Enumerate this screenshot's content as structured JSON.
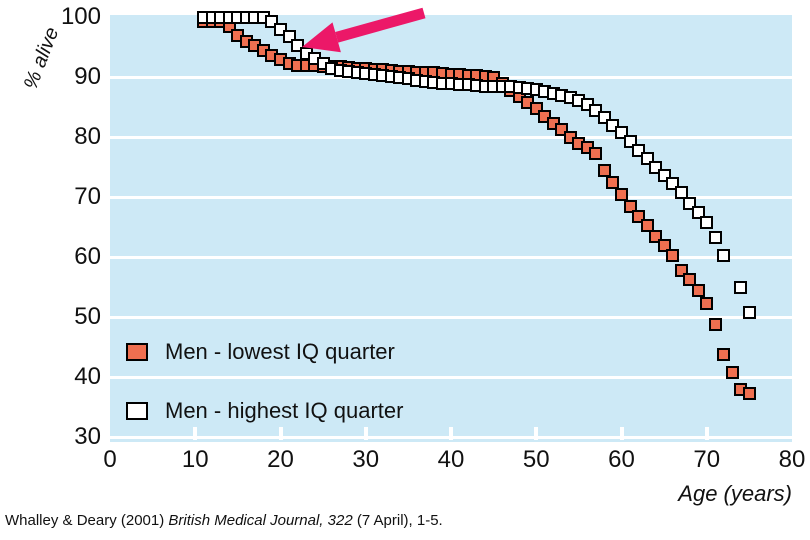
{
  "slide": {
    "citation": {
      "prefix": "Whalley & Deary (2001) ",
      "italic_part": "British Medical Journal, 322",
      "suffix": " (7 April), 1-5."
    }
  },
  "colors": {
    "plot_background": "#cde9f6",
    "gridline": "#ffffff",
    "lowest_iq_marker": "#ef6f50",
    "highest_iq_marker": "#ffffff",
    "marker_border": "#000000",
    "annotation_arrow": "#ec1868",
    "text": "#111111"
  },
  "chart_data": {
    "type": "scatter",
    "title": "",
    "xlabel": "Age (years)",
    "ylabel": "% alive",
    "xlim": [
      0,
      80
    ],
    "ylim": [
      30,
      100
    ],
    "x_ticks": [
      0,
      10,
      20,
      30,
      40,
      50,
      60,
      70,
      80
    ],
    "y_ticks": [
      100,
      90,
      80,
      70,
      60,
      50,
      40,
      30
    ],
    "grid": "horizontal white lines at each 10% on light-blue panel",
    "legend_position": "inside lower-left",
    "annotation": {
      "type": "arrow",
      "color": "#ec1868",
      "points_at": "divergence of curves near age 22, ~94% alive",
      "tip_xy_data": [
        22.5,
        94.5
      ],
      "tail_xy_data": [
        37,
        100.5
      ]
    },
    "series": [
      {
        "name": "Men - lowest IQ quarter",
        "marker": "filled-square",
        "color": "#ef6f50",
        "points": [
          [
            11,
            99.3
          ],
          [
            12,
            99.3
          ],
          [
            13,
            99.2
          ],
          [
            14,
            98.5
          ],
          [
            15,
            97
          ],
          [
            16,
            96
          ],
          [
            17,
            95.2
          ],
          [
            18,
            94.4
          ],
          [
            19,
            93.6
          ],
          [
            20,
            92.9
          ],
          [
            21,
            92.3
          ],
          [
            22,
            92
          ],
          [
            23,
            91.9
          ],
          [
            24,
            91.9
          ],
          [
            25,
            91.8
          ],
          [
            26,
            91.8
          ],
          [
            27,
            91.7
          ],
          [
            28,
            91.6
          ],
          [
            29,
            91.5
          ],
          [
            30,
            91.4
          ],
          [
            31,
            91.3
          ],
          [
            32,
            91.2
          ],
          [
            33,
            91.1
          ],
          [
            34,
            91
          ],
          [
            35,
            90.9
          ],
          [
            36,
            90.8
          ],
          [
            37,
            90.8
          ],
          [
            38,
            90.7
          ],
          [
            39,
            90.6
          ],
          [
            40,
            90.5
          ],
          [
            41,
            90.4
          ],
          [
            42,
            90.3
          ],
          [
            43,
            90.2
          ],
          [
            44,
            90.1
          ],
          [
            45,
            90
          ],
          [
            46,
            89
          ],
          [
            47,
            87.8
          ],
          [
            48,
            86.8
          ],
          [
            49,
            85.7
          ],
          [
            50,
            84.7
          ],
          [
            51,
            83.5
          ],
          [
            52,
            82.3
          ],
          [
            53,
            81.2
          ],
          [
            54,
            80
          ],
          [
            55,
            79
          ],
          [
            56,
            78.2
          ],
          [
            57,
            77.3
          ],
          [
            58,
            74.5
          ],
          [
            59,
            72.5
          ],
          [
            60,
            70.4
          ],
          [
            61,
            68.4
          ],
          [
            62,
            66.8
          ],
          [
            63,
            65.3
          ],
          [
            64,
            63.5
          ],
          [
            65,
            62
          ],
          [
            66,
            60.3
          ],
          [
            67,
            57.8
          ],
          [
            68,
            56.2
          ],
          [
            69,
            54.5
          ],
          [
            70,
            52.3
          ],
          [
            71,
            48.8
          ],
          [
            72,
            43.8
          ],
          [
            73,
            40.8
          ],
          [
            74,
            38
          ],
          [
            75,
            37.2
          ]
        ]
      },
      {
        "name": "Men - highest IQ quarter",
        "marker": "open-square",
        "color": "#ffffff",
        "points": [
          [
            11,
            100
          ],
          [
            12,
            100
          ],
          [
            13,
            100
          ],
          [
            14,
            100
          ],
          [
            15,
            100
          ],
          [
            16,
            100
          ],
          [
            17,
            100
          ],
          [
            18,
            100
          ],
          [
            19,
            99.2
          ],
          [
            20,
            98
          ],
          [
            21,
            96.7
          ],
          [
            22,
            95.3
          ],
          [
            23,
            94
          ],
          [
            24,
            93.1
          ],
          [
            25,
            92.2
          ],
          [
            26,
            91.4
          ],
          [
            27,
            91.1
          ],
          [
            28,
            90.9
          ],
          [
            29,
            90.7
          ],
          [
            30,
            90.6
          ],
          [
            31,
            90.4
          ],
          [
            32,
            90.2
          ],
          [
            33,
            90.1
          ],
          [
            34,
            89.9
          ],
          [
            35,
            89.7
          ],
          [
            36,
            89.5
          ],
          [
            37,
            89.3
          ],
          [
            38,
            89.1
          ],
          [
            39,
            89
          ],
          [
            40,
            88.9
          ],
          [
            41,
            88.8
          ],
          [
            42,
            88.7
          ],
          [
            43,
            88.6
          ],
          [
            44,
            88.5
          ],
          [
            45,
            88.5
          ],
          [
            46,
            88.4
          ],
          [
            47,
            88.4
          ],
          [
            48,
            88.3
          ],
          [
            49,
            88.1
          ],
          [
            50,
            87.9
          ],
          [
            51,
            87.6
          ],
          [
            52,
            87.3
          ],
          [
            53,
            87
          ],
          [
            54,
            86.6
          ],
          [
            55,
            86.1
          ],
          [
            56,
            85.4
          ],
          [
            57,
            84.4
          ],
          [
            58,
            83.2
          ],
          [
            59,
            82
          ],
          [
            60,
            80.7
          ],
          [
            61,
            79.3
          ],
          [
            62,
            77.8
          ],
          [
            63,
            76.4
          ],
          [
            64,
            75
          ],
          [
            65,
            73.6
          ],
          [
            66,
            72.2
          ],
          [
            67,
            70.7
          ],
          [
            68,
            69
          ],
          [
            69,
            67.4
          ],
          [
            70,
            65.8
          ],
          [
            71,
            63.3
          ],
          [
            72,
            60.3
          ],
          [
            74,
            55
          ],
          [
            75,
            50.8
          ]
        ]
      }
    ]
  }
}
